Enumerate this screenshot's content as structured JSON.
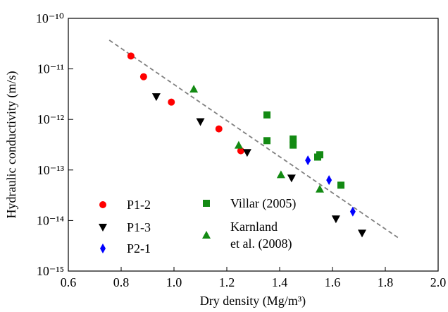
{
  "chart_data": {
    "type": "scatter",
    "xlabel": "Dry density (Mg/m³)",
    "ylabel": "Hydraulic conductivity (m/s)",
    "xlim": [
      0.6,
      2.0
    ],
    "xticks": [
      0.6,
      0.8,
      {
        "value": 1.0,
        "label": "1.0"
      },
      1.2,
      1.4,
      1.6,
      1.8,
      {
        "value": 2.0,
        "label": "2.0"
      }
    ],
    "ylim": [
      1e-15,
      1e-10
    ],
    "ylog": true,
    "yticks": [
      {
        "value": 1e-15,
        "label": "10⁻¹⁵"
      },
      {
        "value": 1e-14,
        "label": "10⁻¹⁴"
      },
      {
        "value": 1e-13,
        "label": "10⁻¹³"
      },
      {
        "value": 1e-12,
        "label": "10⁻¹²"
      },
      {
        "value": 1e-11,
        "label": "10⁻¹¹"
      },
      {
        "value": 1e-10,
        "label": "10⁻¹⁰"
      }
    ],
    "series": [
      {
        "name": "P1-2",
        "color": "#ff0000",
        "marker": "circle",
        "x": [
          0.837,
          0.885,
          0.99,
          1.17,
          1.253
        ],
        "values": [
          1.8e-11,
          7e-12,
          2.2e-12,
          6.5e-13,
          2.4e-13
        ]
      },
      {
        "name": "P1-3",
        "color": "#000000",
        "marker": "triangle-down",
        "x": [
          0.933,
          1.1,
          1.277,
          1.445,
          1.613,
          1.712
        ],
        "values": [
          2.8e-12,
          9e-13,
          2.2e-13,
          6.9e-14,
          1.07e-14,
          5.6e-15
        ]
      },
      {
        "name": "P2-1",
        "color": "#0000ff",
        "marker": "diamond",
        "x": [
          1.507,
          1.587,
          1.677
        ],
        "values": [
          1.55e-13,
          6.3e-14,
          1.5e-14
        ]
      },
      {
        "name": "Villar (2005)",
        "color": "#138a13",
        "marker": "square",
        "x": [
          1.352,
          1.352,
          1.451,
          1.451,
          1.544,
          1.552,
          1.632
        ],
        "values": [
          1.23e-12,
          3.8e-13,
          4.1e-13,
          3.1e-13,
          1.8e-13,
          2e-13,
          5e-14
        ]
      },
      {
        "name": "Karnland\net al. (2008)",
        "color": "#138a13",
        "marker": "triangle-up",
        "x": [
          1.075,
          1.245,
          1.405,
          1.552
        ],
        "values": [
          4e-12,
          3.1e-13,
          8.1e-14,
          4.2e-14
        ]
      }
    ],
    "reference_line": {
      "x": [
        0.755,
        1.853
      ],
      "values": [
        3.7e-11,
        4.4e-15
      ],
      "color": "#808080",
      "style": "dashed"
    }
  }
}
